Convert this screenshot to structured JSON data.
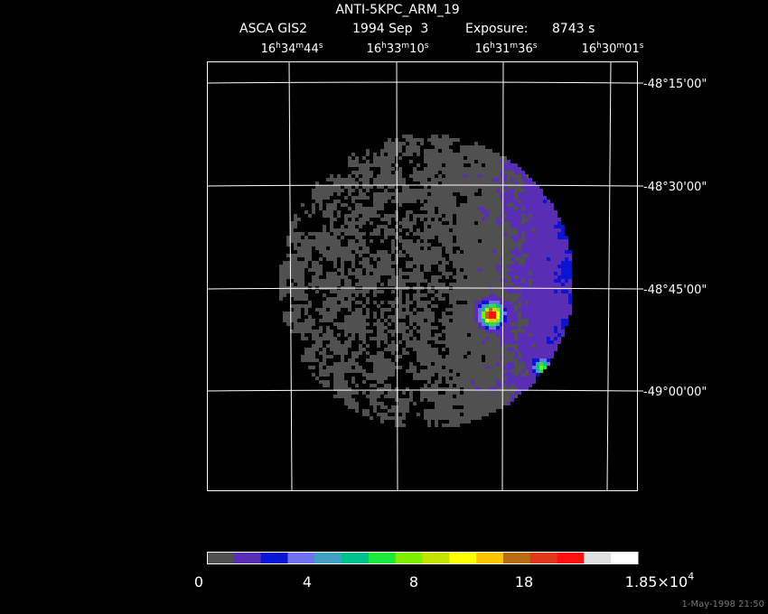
{
  "header": {
    "title": "ANTI-5KPC_ARM_19",
    "instrument": "ASCA GIS2",
    "date": "1994 Sep  3",
    "exposure_label": "Exposure:",
    "exposure": "8743 s"
  },
  "ra_labels": [
    [
      "16",
      "h",
      "34",
      "m",
      "44",
      "s"
    ],
    [
      "16",
      "h",
      "33",
      "m",
      "10",
      "s"
    ],
    [
      "16",
      "h",
      "31",
      "m",
      "36",
      "s"
    ],
    [
      "16",
      "h",
      "30",
      "m",
      "01",
      "s"
    ]
  ],
  "dec_labels": [
    "-48°15'00\"",
    "-48°30'00\"",
    "-48°45'00\"",
    "-49°00'00\""
  ],
  "colorbar": {
    "colors": [
      "#505050",
      "#5a2eb4",
      "#0a14d2",
      "#7070f0",
      "#3fa0c4",
      "#00c08c",
      "#1ee83c",
      "#7cf000",
      "#c2e400",
      "#ffff00",
      "#ffc400",
      "#b86c12",
      "#e0381c",
      "#ff1010",
      "#e0e0e0",
      "#ffffff"
    ],
    "labels": [
      [
        "0"
      ],
      [
        "4"
      ],
      [
        "8"
      ],
      [
        "18"
      ],
      [
        "1.85×10",
        "4"
      ]
    ]
  },
  "timestamp": "1-May-1998 21:50"
}
